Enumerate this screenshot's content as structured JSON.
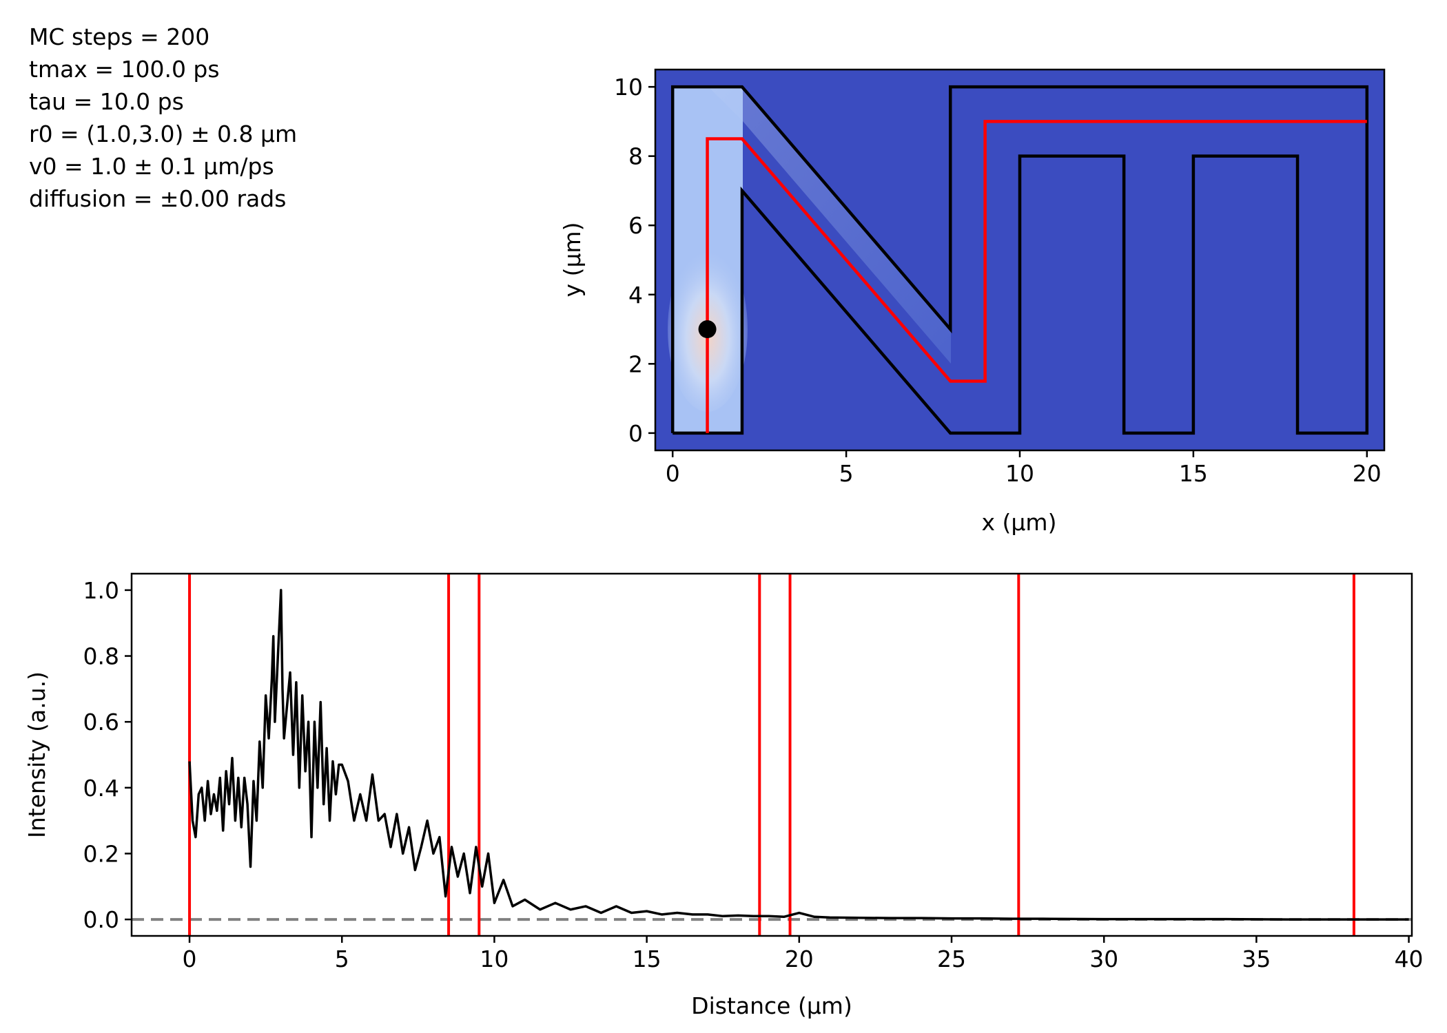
{
  "params": [
    "MC steps = 200",
    "tmax = 100.0 ps",
    "tau = 10.0 ps",
    "r0 = (1.0,3.0) ± 0.8 μm",
    "v0 = 1.0 ± 0.1 μm/ps",
    "diffusion = ±0.00 rads"
  ],
  "chart_data": [
    {
      "type": "heatmap",
      "xlabel": "x (μm)",
      "ylabel": "y (μm)",
      "xlim": [
        -0.5,
        20.5
      ],
      "ylim": [
        -0.5,
        10.5
      ],
      "x_ticks": [
        0,
        5,
        10,
        15,
        20
      ],
      "y_ticks": [
        0,
        2,
        4,
        6,
        8,
        10
      ],
      "background_color": "#3b4cc0",
      "outline_color": "#000000",
      "path_color": "#ff0000",
      "outline": [
        [
          0,
          0
        ],
        [
          0,
          10
        ],
        [
          2,
          10
        ],
        [
          8,
          3
        ],
        [
          8,
          10
        ],
        [
          20,
          10
        ],
        [
          20,
          0
        ],
        [
          18,
          0
        ],
        [
          18,
          8
        ],
        [
          15,
          8
        ],
        [
          15,
          0
        ],
        [
          13,
          0
        ],
        [
          13,
          8
        ],
        [
          10,
          8
        ],
        [
          10,
          0
        ],
        [
          8,
          0
        ],
        [
          2,
          7
        ],
        [
          2,
          0
        ],
        [
          0,
          0
        ]
      ],
      "centerline": [
        [
          1,
          0
        ],
        [
          1,
          8.5
        ],
        [
          2,
          8.5
        ],
        [
          8,
          1.5
        ],
        [
          9,
          1.5
        ],
        [
          9,
          9
        ],
        [
          20,
          9
        ]
      ],
      "start_point": [
        1,
        3
      ]
    },
    {
      "type": "line",
      "xlabel": "Distance (μm)",
      "ylabel": "Intensity (a.u.)",
      "xlim": [
        -1.9,
        40.1
      ],
      "ylim": [
        -0.05,
        1.05
      ],
      "x_ticks": [
        0,
        5,
        10,
        15,
        20,
        25,
        30,
        35,
        40
      ],
      "y_ticks": [
        "0.0",
        "0.2",
        "0.4",
        "0.6",
        "0.8",
        "1.0"
      ],
      "vertical_lines": [
        0,
        8.5,
        9.5,
        18.7,
        19.7,
        27.2,
        38.2
      ],
      "baseline": 0,
      "series": [
        {
          "color": "#000000",
          "x": [
            0,
            0.1,
            0.2,
            0.3,
            0.4,
            0.5,
            0.6,
            0.7,
            0.8,
            0.9,
            1.0,
            1.1,
            1.2,
            1.3,
            1.4,
            1.5,
            1.6,
            1.7,
            1.8,
            1.9,
            2.0,
            2.1,
            2.2,
            2.3,
            2.4,
            2.5,
            2.6,
            2.7,
            2.75,
            2.8,
            2.9,
            3.0,
            3.05,
            3.1,
            3.2,
            3.3,
            3.4,
            3.5,
            3.6,
            3.7,
            3.8,
            3.9,
            4.0,
            4.1,
            4.2,
            4.3,
            4.4,
            4.5,
            4.6,
            4.7,
            4.8,
            4.9,
            5.0,
            5.2,
            5.4,
            5.6,
            5.8,
            6.0,
            6.2,
            6.4,
            6.6,
            6.8,
            7.0,
            7.2,
            7.4,
            7.6,
            7.8,
            8.0,
            8.2,
            8.4,
            8.6,
            8.8,
            9.0,
            9.2,
            9.4,
            9.6,
            9.8,
            10.0,
            10.3,
            10.6,
            11.0,
            11.5,
            12.0,
            12.5,
            13.0,
            13.5,
            14.0,
            14.5,
            15.0,
            15.5,
            16.0,
            16.5,
            17.0,
            17.5,
            18.0,
            18.5,
            19.0,
            19.5,
            20.0,
            20.5,
            21.0,
            22.0,
            23.0,
            24.0,
            25.0,
            26.0,
            27.0,
            28.0,
            30.0,
            32.0,
            34.0,
            36.0,
            38.0,
            40.0
          ],
          "y": [
            0.48,
            0.3,
            0.25,
            0.38,
            0.4,
            0.3,
            0.42,
            0.32,
            0.38,
            0.33,
            0.43,
            0.27,
            0.45,
            0.35,
            0.49,
            0.3,
            0.43,
            0.28,
            0.43,
            0.35,
            0.16,
            0.42,
            0.3,
            0.54,
            0.4,
            0.68,
            0.55,
            0.73,
            0.86,
            0.6,
            0.8,
            1.0,
            0.7,
            0.55,
            0.65,
            0.75,
            0.5,
            0.72,
            0.4,
            0.68,
            0.45,
            0.6,
            0.25,
            0.6,
            0.4,
            0.66,
            0.35,
            0.52,
            0.3,
            0.48,
            0.38,
            0.47,
            0.47,
            0.42,
            0.3,
            0.38,
            0.3,
            0.44,
            0.3,
            0.32,
            0.22,
            0.32,
            0.2,
            0.28,
            0.15,
            0.22,
            0.3,
            0.2,
            0.25,
            0.07,
            0.22,
            0.13,
            0.2,
            0.08,
            0.22,
            0.1,
            0.2,
            0.05,
            0.12,
            0.04,
            0.06,
            0.03,
            0.05,
            0.03,
            0.04,
            0.02,
            0.04,
            0.02,
            0.025,
            0.015,
            0.02,
            0.015,
            0.015,
            0.01,
            0.012,
            0.01,
            0.01,
            0.008,
            0.02,
            0.008,
            0.006,
            0.005,
            0.004,
            0.004,
            0.003,
            0.003,
            0.002,
            0.002,
            0.001,
            0.001,
            0.001,
            0.0,
            0.0,
            0.0
          ]
        }
      ]
    }
  ]
}
